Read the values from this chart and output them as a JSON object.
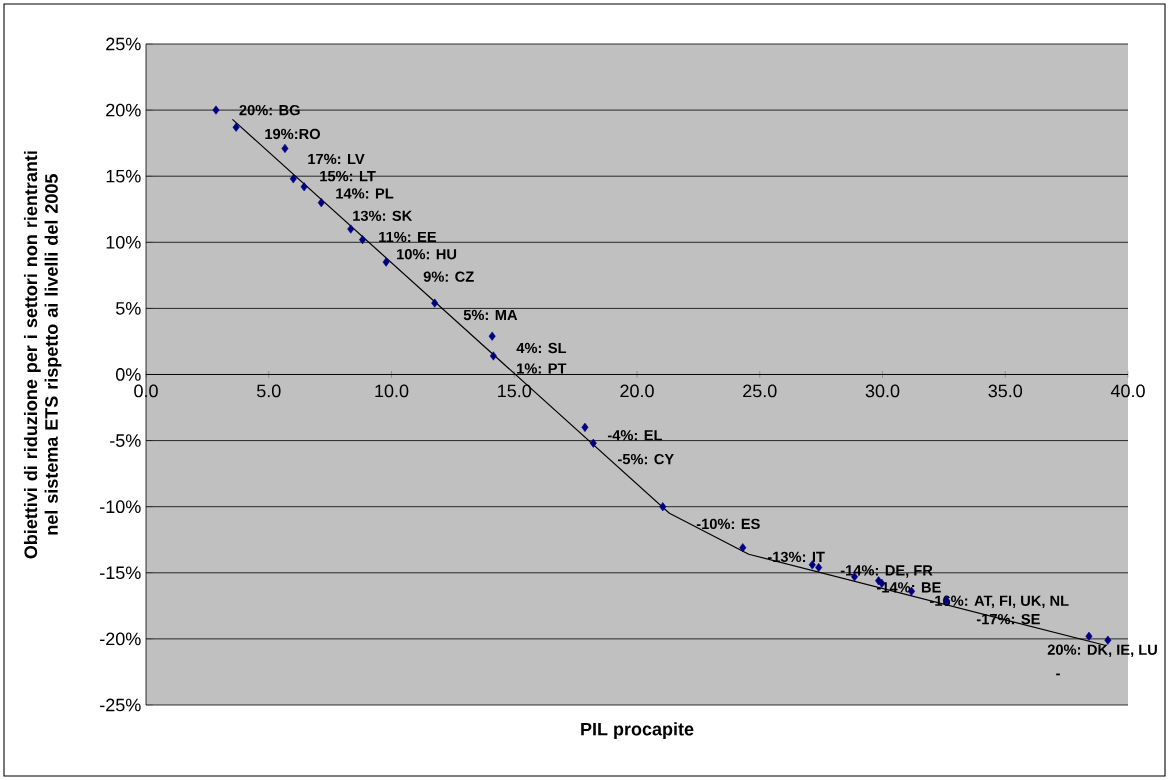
{
  "chart_data": {
    "type": "scatter",
    "xlabel": "PIL procapite",
    "ylabel": "Obiettivi di riduzione per i settori non rientranti nel sistema ETS rispetto ai livelli del 2005",
    "xlim": [
      0,
      40
    ],
    "xticks": [
      {
        "value": 0,
        "label": "0.0"
      },
      {
        "value": 5,
        "label": "5.0"
      },
      {
        "value": 10,
        "label": "10.0"
      },
      {
        "value": 15,
        "label": "15.0"
      },
      {
        "value": 20,
        "label": "20.0"
      },
      {
        "value": 25,
        "label": "25.0"
      },
      {
        "value": 30,
        "label": "30.0"
      },
      {
        "value": 35,
        "label": "35.0"
      },
      {
        "value": 40,
        "label": "40.0"
      }
    ],
    "ylim": [
      -25,
      25
    ],
    "yticks": [
      {
        "value": -25,
        "label": "-25%"
      },
      {
        "value": -20,
        "label": "-20%"
      },
      {
        "value": -15,
        "label": "-15%"
      },
      {
        "value": -10,
        "label": "-10%"
      },
      {
        "value": -5,
        "label": "-5%"
      },
      {
        "value": 0,
        "label": "0%"
      },
      {
        "value": 5,
        "label": "5%"
      },
      {
        "value": 10,
        "label": "10%"
      },
      {
        "value": 15,
        "label": "15%"
      },
      {
        "value": 20,
        "label": "20%"
      },
      {
        "value": 25,
        "label": "25%"
      }
    ],
    "grid": "y",
    "series": [
      {
        "marker": "diamond",
        "color": "#000080",
        "x": [
          2.85,
          3.67,
          5.66,
          6.0,
          6.44,
          7.14,
          8.34,
          8.82,
          9.78,
          11.76,
          14.1,
          14.15,
          17.88,
          18.22,
          21.05,
          24.31,
          27.14,
          27.4,
          28.86,
          29.84,
          29.97,
          31.18,
          32.61,
          38.41,
          39.18
        ],
        "values": [
          20.0,
          18.7,
          17.1,
          14.8,
          14.2,
          13.0,
          11.0,
          10.2,
          8.5,
          5.4,
          2.9,
          1.4,
          -4.0,
          -5.2,
          -10.0,
          -13.1,
          -14.4,
          -14.6,
          -15.3,
          -15.6,
          -15.8,
          -16.4,
          -17.1,
          -19.8,
          -20.1
        ]
      },
      {
        "type": "line",
        "marker": "none",
        "line_style": "solid",
        "color": "#000000",
        "x": [
          3.52,
          21.32,
          24.55,
          39.1
        ],
        "values": [
          19.3,
          -10.5,
          -13.6,
          -20.5
        ]
      }
    ],
    "annotations": [
      {
        "text": "20%: BG",
        "x": 2.85,
        "y": 20.0
      },
      {
        "text": "19%:RO",
        "x": 3.67,
        "y": 18.7
      },
      {
        "text": "17%: LV",
        "x": 5.66,
        "y": 17.1
      },
      {
        "text": "15%:  LT",
        "x": 6.0,
        "y": 14.8
      },
      {
        "text": "14%: PL",
        "x": 6.44,
        "y": 14.2
      },
      {
        "text": "13%: SK",
        "x": 7.14,
        "y": 13.0
      },
      {
        "text": "11%: EE",
        "x": 8.34,
        "y": 11.0
      },
      {
        "text": "10%: HU",
        "x": 8.82,
        "y": 10.2
      },
      {
        "text": "9%: CZ",
        "x": 9.78,
        "y": 8.5
      },
      {
        "text": "5%: MA",
        "x": 11.76,
        "y": 5.4
      },
      {
        "text": "4%: SL",
        "x": 14.1,
        "y": 2.9
      },
      {
        "text": "1%:  PT",
        "x": 14.15,
        "y": 1.4
      },
      {
        "text": "-4%: EL",
        "x": 17.88,
        "y": -4.0
      },
      {
        "text": "-5%: CY",
        "x": 18.22,
        "y": -5.2
      },
      {
        "text": "-10%: ES",
        "x": 21.05,
        "y": -10.0
      },
      {
        "text": "-13%: IT",
        "x": 24.31,
        "y": -13.1
      },
      {
        "text": "-14%: DE, FR",
        "x": 28.86,
        "y": -15.3
      },
      {
        "text": "-14%: BE",
        "x": 29.97,
        "y": -15.8
      },
      {
        "text": "-16%: AT, FI, UK, NL",
        "x": 31.18,
        "y": -16.4
      },
      {
        "text": "-17%: SE",
        "x": 32.61,
        "y": -17.1
      },
      {
        "text": "20%: DK, IE, LU",
        "x": 38.41,
        "y": -19.8
      },
      "-"
    ]
  }
}
